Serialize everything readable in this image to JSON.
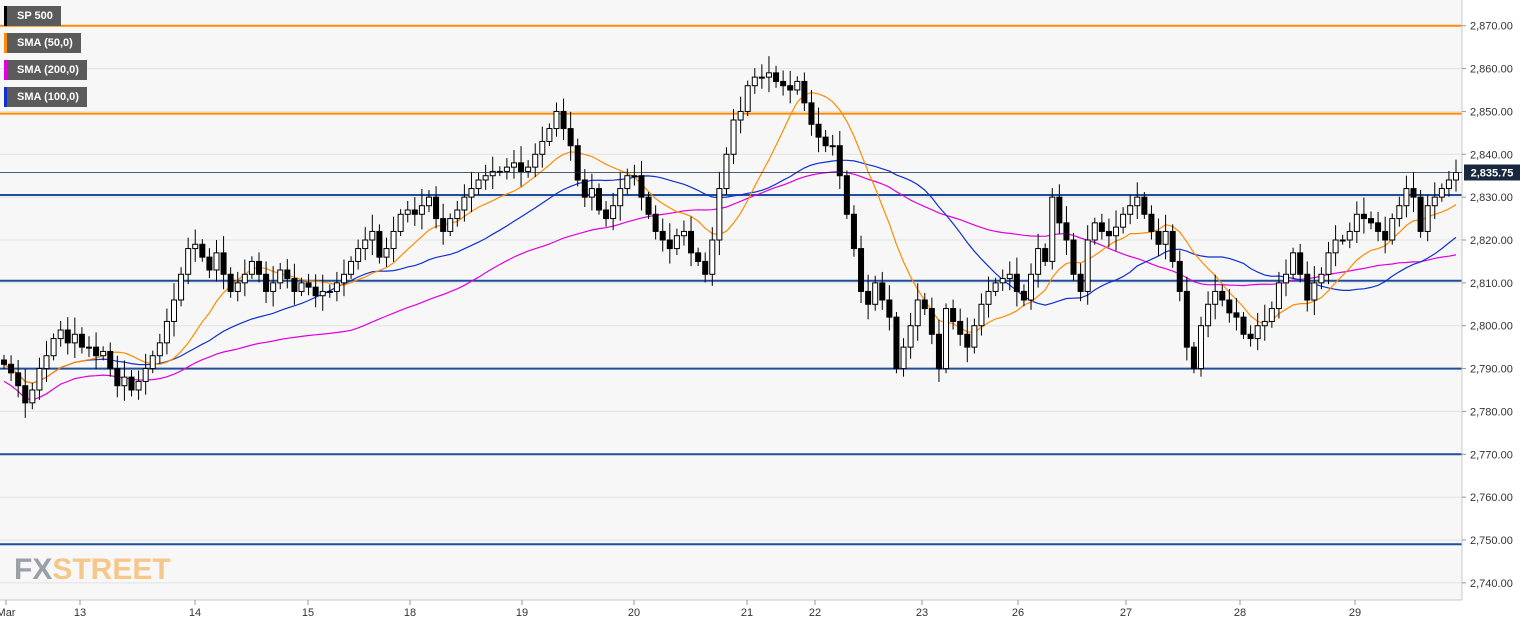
{
  "legend": [
    {
      "label": "SP 500",
      "color": "#000000"
    },
    {
      "label": "SMA (50,0)",
      "color": "#ff8c00"
    },
    {
      "label": "SMA (200,0)",
      "color": "#e000e0"
    },
    {
      "label": "SMA (100,0)",
      "color": "#1030d0"
    }
  ],
  "logo": {
    "part1": "FX",
    "part2": "STREET"
  },
  "colors": {
    "background": "#f7f7f7",
    "grid": "#e2e2e2",
    "orange_level": "#ff8c00",
    "blue_level": "#1f4e9a",
    "sma50": "#ff8c00",
    "sma100": "#1030d0",
    "sma200": "#e000e0",
    "candle": "#000000",
    "price_badge": "#17283f"
  },
  "chart_data": {
    "type": "candlestick",
    "symbol": "SP 500",
    "ylim": [
      2736,
      2876
    ],
    "y_ticks": [
      "2,740.00",
      "2,750.00",
      "2,760.00",
      "2,770.00",
      "2,780.00",
      "2,790.00",
      "2,800.00",
      "2,810.00",
      "2,820.00",
      "2,830.00",
      "2,840.00",
      "2,850.00",
      "2,860.00",
      "2,870.00"
    ],
    "x_ticks": [
      "Mar",
      "13",
      "14",
      "15",
      "18",
      "19",
      "20",
      "21",
      "22",
      "23",
      "26",
      "27",
      "28",
      "29"
    ],
    "current_price": 2835.75,
    "current_price_label": "2,835.75",
    "levels": [
      {
        "value": 2870,
        "color": "orange"
      },
      {
        "value": 2849.5,
        "color": "orange"
      },
      {
        "value": 2830.5,
        "color": "blue"
      },
      {
        "value": 2810.5,
        "color": "blue"
      },
      {
        "value": 2790,
        "color": "blue"
      },
      {
        "value": 2770,
        "color": "blue"
      },
      {
        "value": 2749,
        "color": "blue"
      }
    ],
    "series": [
      {
        "name": "SP 500",
        "closes": [
          2791,
          2789,
          2786,
          2782,
          2785,
          2790,
          2793,
          2797,
          2799,
          2796,
          2798,
          2795,
          2795,
          2793,
          2794,
          2790,
          2786,
          2788,
          2785,
          2787,
          2790,
          2793,
          2796,
          2801,
          2806,
          2812,
          2818,
          2819,
          2816,
          2813,
          2817,
          2812,
          2808,
          2810,
          2812,
          2815,
          2812,
          2808,
          2810,
          2813,
          2811,
          2808,
          2810,
          2809,
          2807,
          2808,
          2808,
          2810,
          2812,
          2815,
          2818,
          2820,
          2822,
          2816,
          2818,
          2822,
          2826,
          2827,
          2826,
          2828,
          2830,
          2825,
          2822,
          2825,
          2827,
          2830,
          2832,
          2834,
          2835,
          2836,
          2836,
          2837,
          2838,
          2836,
          2837,
          2840,
          2843,
          2846,
          2850,
          2846,
          2842,
          2834,
          2830,
          2832,
          2827,
          2825,
          2828,
          2832,
          2835,
          2835,
          2830,
          2826,
          2822,
          2820,
          2818,
          2821,
          2822,
          2817,
          2815,
          2812,
          2820,
          2832,
          2840,
          2848,
          2850,
          2856,
          2858,
          2858,
          2859,
          2857,
          2856,
          2855,
          2857,
          2852,
          2847,
          2844,
          2842,
          2842,
          2835,
          2826,
          2818,
          2808,
          2805,
          2810,
          2806,
          2802,
          2790,
          2795,
          2800,
          2806,
          2804,
          2798,
          2790,
          2804,
          2801,
          2798,
          2795,
          2800,
          2805,
          2808,
          2810,
          2811,
          2812,
          2808,
          2806,
          2812,
          2818,
          2815,
          2830,
          2824,
          2820,
          2812,
          2808,
          2820,
          2824,
          2822,
          2821,
          2823,
          2826,
          2828,
          2830,
          2826,
          2822,
          2819,
          2822,
          2815,
          2808,
          2795,
          2790,
          2800,
          2805,
          2808,
          2806,
          2803,
          2802,
          2798,
          2797,
          2800,
          2801,
          2804,
          2810,
          2812,
          2817,
          2812,
          2806,
          2810,
          2812,
          2817,
          2820,
          2820,
          2822,
          2826,
          2825,
          2824,
          2822,
          2820,
          2825,
          2828,
          2832,
          2830,
          2822,
          2828,
          2830,
          2832,
          2834,
          2835.75
        ]
      }
    ]
  }
}
